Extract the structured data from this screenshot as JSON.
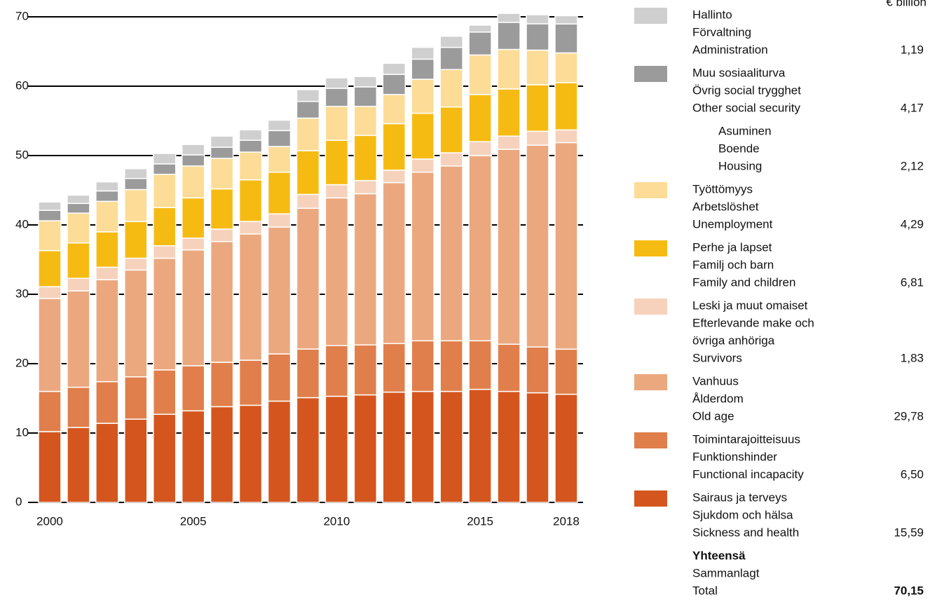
{
  "chart_data": {
    "type": "stacked_bar",
    "unit_label": "€ billion",
    "categories": [
      "2000",
      null,
      null,
      null,
      null,
      "2005",
      null,
      null,
      null,
      null,
      "2010",
      null,
      null,
      null,
      null,
      "2015",
      null,
      null,
      "2018"
    ],
    "ylim": [
      0,
      72
    ],
    "yticks": [
      0,
      10,
      20,
      30,
      40,
      50,
      60,
      70
    ],
    "grid": true,
    "series": [
      {
        "name": "Sickness and health",
        "names": [
          "Sairaus ja terveys",
          "Sjukdom och hälsa",
          "Sickness and health"
        ],
        "color": "#d4561e",
        "values": [
          10.2,
          10.8,
          11.4,
          12.0,
          12.7,
          13.2,
          13.8,
          14.0,
          14.6,
          15.1,
          15.3,
          15.5,
          15.9,
          16.0,
          16.0,
          16.3,
          16.0,
          15.8,
          15.59
        ],
        "value_label": "15,59"
      },
      {
        "name": "Functional incapacity",
        "names": [
          "Toimintarajoitteisuus",
          "Funktionshinder",
          "Functional incapacity"
        ],
        "color": "#e07f4b",
        "values": [
          5.8,
          5.8,
          6.0,
          6.1,
          6.4,
          6.5,
          6.4,
          6.5,
          6.8,
          7.0,
          7.3,
          7.2,
          7.0,
          7.3,
          7.3,
          7.0,
          6.8,
          6.6,
          6.5
        ],
        "value_label": "6,50"
      },
      {
        "name": "Old age",
        "names": [
          "Vanhuus",
          "Ålderdom",
          "Old age"
        ],
        "color": "#eba87f",
        "values": [
          13.4,
          13.9,
          14.7,
          15.4,
          16.1,
          16.7,
          17.4,
          18.2,
          18.3,
          20.3,
          21.3,
          21.8,
          23.2,
          24.3,
          25.2,
          26.7,
          28.1,
          29.1,
          29.78
        ],
        "value_label": "29,78"
      },
      {
        "name": "Survivors",
        "names": [
          "Leski ja muut omaiset",
          "Efterlevande make och",
          "övriga anhöriga",
          "Survivors"
        ],
        "color": "#f6d2bc",
        "values": [
          1.7,
          1.8,
          1.8,
          1.7,
          1.8,
          1.7,
          1.8,
          1.8,
          1.9,
          2.0,
          1.9,
          1.9,
          1.8,
          1.9,
          1.9,
          2.0,
          1.9,
          2.0,
          1.83
        ],
        "value_label": "1,83"
      },
      {
        "name": "Family and children",
        "names": [
          "Perhe ja lapset",
          "Familj och barn",
          "Family and children"
        ],
        "color": "#f6bb13",
        "values": [
          5.2,
          5.1,
          5.1,
          5.3,
          5.5,
          5.8,
          5.8,
          6.0,
          6.0,
          6.3,
          6.4,
          6.5,
          6.7,
          6.6,
          6.6,
          6.8,
          6.8,
          6.7,
          6.81
        ],
        "value_label": "6,81"
      },
      {
        "name": "Unemployment",
        "names": [
          "Työttömyys",
          "Arbetslöshet",
          "Unemployment"
        ],
        "color": "#fcdc96",
        "values": [
          4.3,
          4.3,
          4.4,
          4.6,
          4.8,
          4.6,
          4.4,
          4.0,
          3.7,
          4.7,
          4.9,
          4.2,
          4.2,
          4.9,
          5.4,
          5.7,
          5.7,
          5.0,
          4.29
        ],
        "value_label": "4,29"
      },
      {
        "name": "Other social security",
        "names": [
          "Muu sosiaaliturva",
          "Övrig social trygghet",
          "Other social security"
        ],
        "color": "#9b9b9b",
        "values": [
          1.5,
          1.4,
          1.5,
          1.6,
          1.5,
          1.6,
          1.6,
          1.7,
          2.3,
          2.4,
          2.6,
          2.8,
          2.9,
          2.9,
          3.2,
          3.3,
          3.9,
          3.8,
          4.17
        ],
        "value_label": "4,17",
        "sub_item": {
          "names": [
            "Asuminen",
            "Boende",
            "Housing"
          ],
          "label": "2,12"
        }
      },
      {
        "name": "Administration",
        "names": [
          "Hallinto",
          "Förvaltning",
          "Administration"
        ],
        "color": "#cfcfcf",
        "values": [
          1.2,
          1.2,
          1.3,
          1.4,
          1.5,
          1.5,
          1.6,
          1.5,
          1.5,
          1.7,
          1.5,
          1.5,
          1.6,
          1.7,
          1.6,
          1.0,
          1.3,
          1.3,
          1.19
        ],
        "value_label": "1,19"
      }
    ],
    "total": {
      "names": [
        "Yhteensä",
        "Sammanlagt",
        "Total"
      ],
      "label": "70,15"
    }
  }
}
